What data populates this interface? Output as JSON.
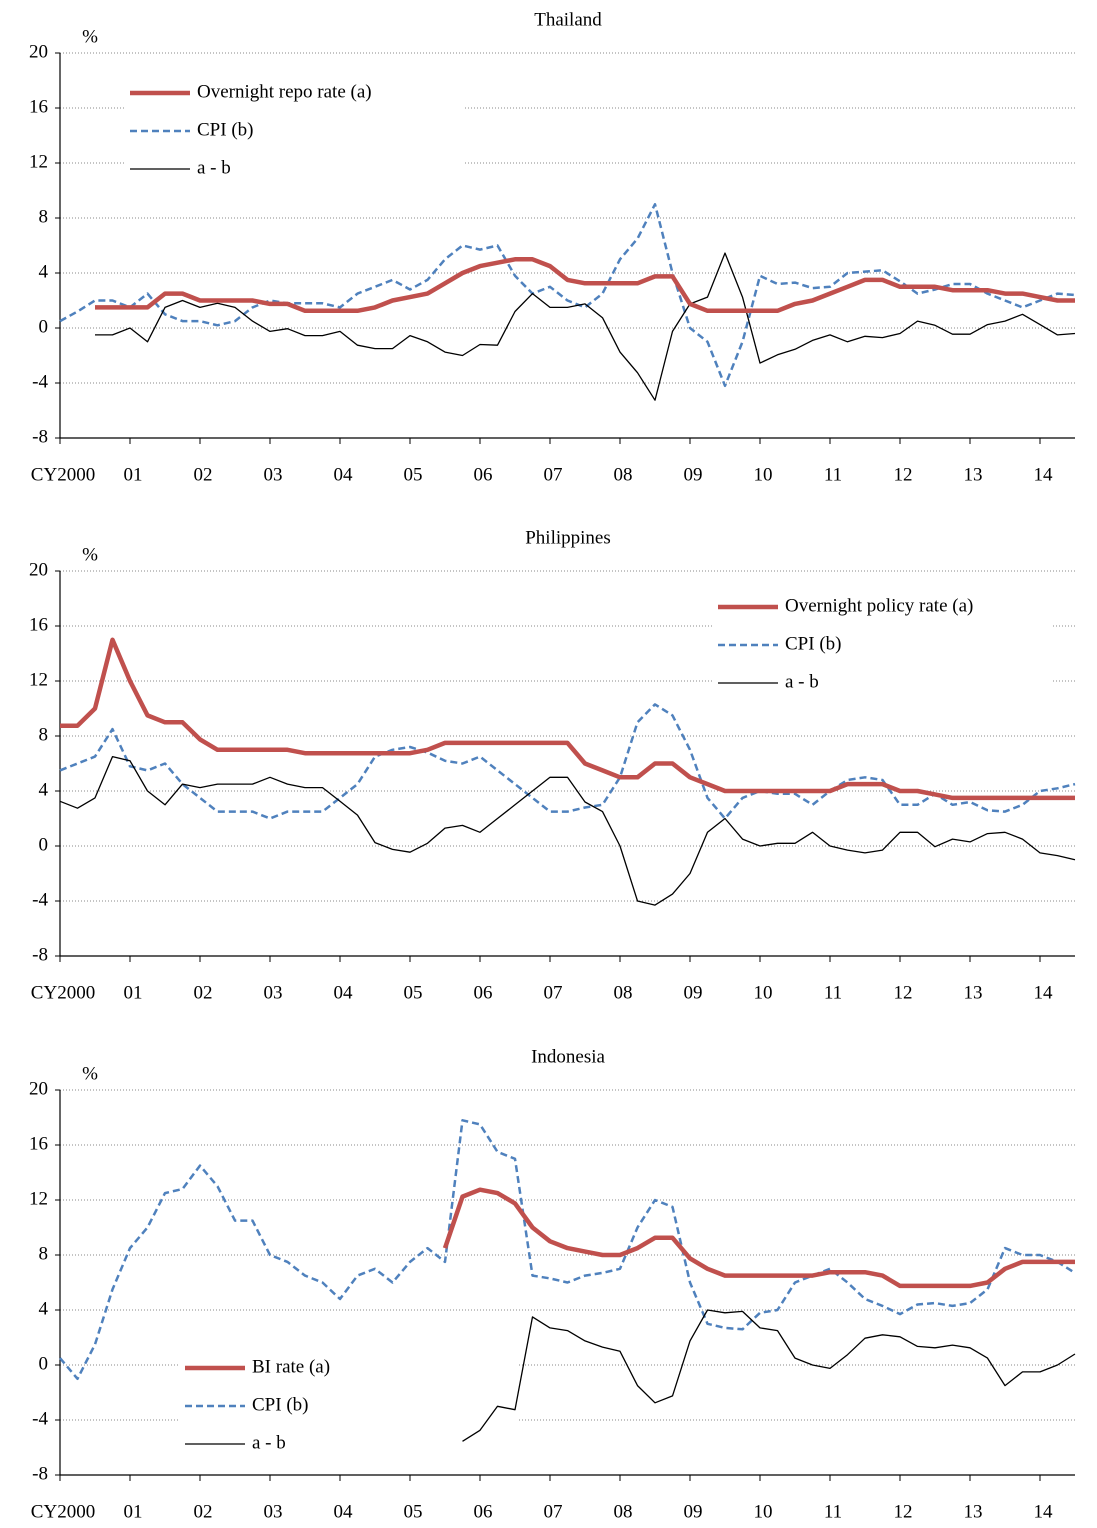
{
  "chart_data": [
    {
      "type": "line",
      "title": "Thailand",
      "y_label": "%",
      "legend": "upper left",
      "grid": true,
      "xlim": [
        2000,
        2014.5
      ],
      "ylim": [
        -8,
        20
      ],
      "yticks": [
        -8,
        -4,
        0,
        4,
        8,
        12,
        16,
        20
      ],
      "xticks": [
        {
          "value": 2000,
          "label": "CY2000"
        },
        {
          "value": 2001,
          "label": "01"
        },
        {
          "value": 2002,
          "label": "02"
        },
        {
          "value": 2003,
          "label": "03"
        },
        {
          "value": 2004,
          "label": "04"
        },
        {
          "value": 2005,
          "label": "05"
        },
        {
          "value": 2006,
          "label": "06"
        },
        {
          "value": 2007,
          "label": "07"
        },
        {
          "value": 2008,
          "label": "08"
        },
        {
          "value": 2009,
          "label": "09"
        },
        {
          "value": 2010,
          "label": "10"
        },
        {
          "value": 2011,
          "label": "11"
        },
        {
          "value": 2012,
          "label": "12"
        },
        {
          "value": 2013,
          "label": "13"
        },
        {
          "value": 2014,
          "label": "14"
        }
      ],
      "x": [
        2000,
        2000.25,
        2000.5,
        2000.75,
        2001,
        2001.25,
        2001.5,
        2001.75,
        2002,
        2002.25,
        2002.5,
        2002.75,
        2003,
        2003.25,
        2003.5,
        2003.75,
        2004,
        2004.25,
        2004.5,
        2004.75,
        2005,
        2005.25,
        2005.5,
        2005.75,
        2006,
        2006.25,
        2006.5,
        2006.75,
        2007,
        2007.25,
        2007.5,
        2007.75,
        2008,
        2008.25,
        2008.5,
        2008.75,
        2009,
        2009.25,
        2009.5,
        2009.75,
        2010,
        2010.25,
        2010.5,
        2010.75,
        2011,
        2011.25,
        2011.5,
        2011.75,
        2012,
        2012.25,
        2012.5,
        2012.75,
        2013,
        2013.25,
        2013.5,
        2013.75,
        2014,
        2014.25,
        2014.5
      ],
      "series": [
        {
          "name": "Overnight repo rate (a)",
          "color": "#c0504d",
          "style": "solid",
          "width": 4.5,
          "values": [
            null,
            null,
            1.5,
            1.5,
            1.5,
            1.5,
            2.5,
            2.5,
            2.0,
            2.0,
            2.0,
            2.0,
            1.75,
            1.75,
            1.25,
            1.25,
            1.25,
            1.25,
            1.5,
            2.0,
            2.25,
            2.5,
            3.25,
            4.0,
            4.5,
            4.75,
            5.0,
            5.0,
            4.5,
            3.5,
            3.25,
            3.25,
            3.25,
            3.25,
            3.75,
            3.75,
            1.75,
            1.25,
            1.25,
            1.25,
            1.25,
            1.25,
            1.75,
            2.0,
            2.5,
            3.0,
            3.5,
            3.5,
            3.0,
            3.0,
            3.0,
            2.75,
            2.75,
            2.75,
            2.5,
            2.5,
            2.25,
            2.0,
            2.0
          ]
        },
        {
          "name": "CPI (b)",
          "color": "#4f81bd",
          "style": "dashed",
          "width": 2.5,
          "values": [
            0.5,
            1.2,
            2.0,
            2.0,
            1.5,
            2.5,
            1.0,
            0.5,
            0.5,
            0.2,
            0.5,
            1.5,
            2.0,
            1.8,
            1.8,
            1.8,
            1.5,
            2.5,
            3.0,
            3.5,
            2.8,
            3.5,
            5.0,
            6.0,
            5.7,
            6.0,
            3.8,
            2.5,
            3.0,
            2.0,
            1.5,
            2.5,
            5.0,
            6.5,
            9.0,
            4.0,
            0.0,
            -1.0,
            -4.2,
            -1.0,
            3.8,
            3.2,
            3.3,
            2.9,
            3.0,
            4.0,
            4.1,
            4.2,
            3.4,
            2.5,
            2.8,
            3.2,
            3.2,
            2.5,
            2.0,
            1.5,
            2.0,
            2.5,
            2.4
          ]
        },
        {
          "name": "a - b",
          "color": "#000000",
          "style": "solid",
          "width": 1.3,
          "values": [
            null,
            null,
            -0.5,
            -0.5,
            0,
            -1,
            1.5,
            2,
            1.5,
            1.8,
            1.5,
            0.5,
            -0.25,
            -0.05,
            -0.55,
            -0.55,
            -0.25,
            -1.25,
            -1.5,
            -1.5,
            -0.55,
            -1,
            -1.75,
            -2,
            -1.2,
            -1.25,
            1.2,
            2.5,
            1.5,
            1.5,
            1.75,
            0.75,
            -1.75,
            -3.25,
            -5.25,
            -0.25,
            1.75,
            2.25,
            5.45,
            2.25,
            -2.55,
            -1.95,
            -1.55,
            -0.9,
            -0.5,
            -1,
            -0.6,
            -0.7,
            -0.4,
            0.5,
            0.2,
            -0.45,
            -0.45,
            0.25,
            0.5,
            1,
            0.25,
            -0.5,
            -0.4
          ]
        }
      ]
    },
    {
      "type": "line",
      "title": "Philippines",
      "y_label": "%",
      "legend": "upper right",
      "grid": true,
      "xlim": [
        2000,
        2014.5
      ],
      "ylim": [
        -8,
        20
      ],
      "yticks": [
        -8,
        -4,
        0,
        4,
        8,
        12,
        16,
        20
      ],
      "xticks": [
        {
          "value": 2000,
          "label": "CY2000"
        },
        {
          "value": 2001,
          "label": "01"
        },
        {
          "value": 2002,
          "label": "02"
        },
        {
          "value": 2003,
          "label": "03"
        },
        {
          "value": 2004,
          "label": "04"
        },
        {
          "value": 2005,
          "label": "05"
        },
        {
          "value": 2006,
          "label": "06"
        },
        {
          "value": 2007,
          "label": "07"
        },
        {
          "value": 2008,
          "label": "08"
        },
        {
          "value": 2009,
          "label": "09"
        },
        {
          "value": 2010,
          "label": "10"
        },
        {
          "value": 2011,
          "label": "11"
        },
        {
          "value": 2012,
          "label": "12"
        },
        {
          "value": 2013,
          "label": "13"
        },
        {
          "value": 2014,
          "label": "14"
        }
      ],
      "x": [
        2000,
        2000.25,
        2000.5,
        2000.75,
        2001,
        2001.25,
        2001.5,
        2001.75,
        2002,
        2002.25,
        2002.5,
        2002.75,
        2003,
        2003.25,
        2003.5,
        2003.75,
        2004,
        2004.25,
        2004.5,
        2004.75,
        2005,
        2005.25,
        2005.5,
        2005.75,
        2006,
        2006.25,
        2006.5,
        2006.75,
        2007,
        2007.25,
        2007.5,
        2007.75,
        2008,
        2008.25,
        2008.5,
        2008.75,
        2009,
        2009.25,
        2009.5,
        2009.75,
        2010,
        2010.25,
        2010.5,
        2010.75,
        2011,
        2011.25,
        2011.5,
        2011.75,
        2012,
        2012.25,
        2012.5,
        2012.75,
        2013,
        2013.25,
        2013.5,
        2013.75,
        2014,
        2014.25,
        2014.5
      ],
      "series": [
        {
          "name": "Overnight policy rate (a)",
          "color": "#c0504d",
          "style": "solid",
          "width": 4.5,
          "values": [
            8.75,
            8.75,
            10,
            15,
            12,
            9.5,
            9,
            9,
            7.75,
            7,
            7,
            7,
            7,
            7,
            6.75,
            6.75,
            6.75,
            6.75,
            6.75,
            6.75,
            6.75,
            7,
            7.5,
            7.5,
            7.5,
            7.5,
            7.5,
            7.5,
            7.5,
            7.5,
            6,
            5.5,
            5,
            5,
            6,
            6,
            5,
            4.5,
            4,
            4,
            4,
            4,
            4,
            4,
            4,
            4.5,
            4.5,
            4.5,
            4,
            4,
            3.75,
            3.5,
            3.5,
            3.5,
            3.5,
            3.5,
            3.5,
            3.5,
            3.5
          ]
        },
        {
          "name": "CPI (b)",
          "color": "#4f81bd",
          "style": "dashed",
          "width": 2.5,
          "values": [
            5.5,
            6.0,
            6.5,
            8.5,
            5.8,
            5.5,
            6.0,
            4.5,
            3.5,
            2.5,
            2.5,
            2.5,
            2.0,
            2.5,
            2.5,
            2.5,
            3.5,
            4.5,
            6.5,
            7.0,
            7.2,
            6.8,
            6.2,
            6.0,
            6.5,
            5.5,
            4.5,
            3.5,
            2.5,
            2.5,
            2.8,
            3.0,
            5.0,
            9.0,
            10.3,
            9.5,
            7.0,
            3.5,
            2.0,
            3.5,
            4.0,
            3.8,
            3.8,
            3.0,
            4.0,
            4.8,
            5.0,
            4.8,
            3.0,
            3.0,
            3.8,
            3.0,
            3.2,
            2.6,
            2.5,
            3.0,
            4.0,
            4.2,
            4.5
          ]
        },
        {
          "name": "a - b",
          "color": "#000000",
          "style": "solid",
          "width": 1.3,
          "values": [
            3.25,
            2.75,
            3.5,
            6.5,
            6.2,
            4.0,
            3.0,
            4.5,
            4.25,
            4.5,
            4.5,
            4.5,
            5.0,
            4.5,
            4.25,
            4.25,
            3.25,
            2.25,
            0.25,
            -0.25,
            -0.45,
            0.2,
            1.3,
            1.5,
            1.0,
            2.0,
            3.0,
            4.0,
            5.0,
            5.0,
            3.2,
            2.5,
            0.0,
            -4.0,
            -4.3,
            -3.5,
            -2.0,
            1.0,
            2.0,
            0.5,
            0.0,
            0.2,
            0.2,
            1.0,
            0.0,
            -0.3,
            -0.5,
            -0.3,
            1.0,
            1.0,
            -0.05,
            0.5,
            0.3,
            0.9,
            1.0,
            0.5,
            -0.5,
            -0.7,
            -1.0
          ]
        }
      ]
    },
    {
      "type": "line",
      "title": "Indonesia",
      "y_label": "%",
      "legend": "lower left",
      "grid": true,
      "xlim": [
        2000,
        2014.5
      ],
      "ylim": [
        -8,
        20
      ],
      "yticks": [
        -8,
        -4,
        0,
        4,
        8,
        12,
        16,
        20
      ],
      "xticks": [
        {
          "value": 2000,
          "label": "CY2000"
        },
        {
          "value": 2001,
          "label": "01"
        },
        {
          "value": 2002,
          "label": "02"
        },
        {
          "value": 2003,
          "label": "03"
        },
        {
          "value": 2004,
          "label": "04"
        },
        {
          "value": 2005,
          "label": "05"
        },
        {
          "value": 2006,
          "label": "06"
        },
        {
          "value": 2007,
          "label": "07"
        },
        {
          "value": 2008,
          "label": "08"
        },
        {
          "value": 2009,
          "label": "09"
        },
        {
          "value": 2010,
          "label": "10"
        },
        {
          "value": 2011,
          "label": "11"
        },
        {
          "value": 2012,
          "label": "12"
        },
        {
          "value": 2013,
          "label": "13"
        },
        {
          "value": 2014,
          "label": "14"
        }
      ],
      "x": [
        2000,
        2000.25,
        2000.5,
        2000.75,
        2001,
        2001.25,
        2001.5,
        2001.75,
        2002,
        2002.25,
        2002.5,
        2002.75,
        2003,
        2003.25,
        2003.5,
        2003.75,
        2004,
        2004.25,
        2004.5,
        2004.75,
        2005,
        2005.25,
        2005.5,
        2005.75,
        2006,
        2006.25,
        2006.5,
        2006.75,
        2007,
        2007.25,
        2007.5,
        2007.75,
        2008,
        2008.25,
        2008.5,
        2008.75,
        2009,
        2009.25,
        2009.5,
        2009.75,
        2010,
        2010.25,
        2010.5,
        2010.75,
        2011,
        2011.25,
        2011.5,
        2011.75,
        2012,
        2012.25,
        2012.5,
        2012.75,
        2013,
        2013.25,
        2013.5,
        2013.75,
        2014,
        2014.25,
        2014.5
      ],
      "series": [
        {
          "name": "BI rate (a)",
          "color": "#c0504d",
          "style": "solid",
          "width": 4.5,
          "values": [
            null,
            null,
            null,
            null,
            null,
            null,
            null,
            null,
            null,
            null,
            null,
            null,
            null,
            null,
            null,
            null,
            null,
            null,
            null,
            null,
            null,
            null,
            8.5,
            12.25,
            12.75,
            12.5,
            11.75,
            10.0,
            9.0,
            8.5,
            8.25,
            8.0,
            8.0,
            8.5,
            9.25,
            9.25,
            7.75,
            7.0,
            6.5,
            6.5,
            6.5,
            6.5,
            6.5,
            6.5,
            6.75,
            6.75,
            6.75,
            6.5,
            5.75,
            5.75,
            5.75,
            5.75,
            5.75,
            6.0,
            7.0,
            7.5,
            7.5,
            7.5,
            7.5
          ]
        },
        {
          "name": "CPI (b)",
          "color": "#4f81bd",
          "style": "dashed",
          "width": 2.5,
          "values": [
            0.5,
            -1.0,
            1.5,
            5.5,
            8.5,
            10,
            12.5,
            12.8,
            14.5,
            13,
            10.5,
            10.5,
            8,
            7.5,
            6.5,
            6.0,
            4.8,
            6.5,
            7.0,
            6.0,
            7.5,
            8.5,
            7.5,
            17.8,
            17.5,
            15.5,
            15.0,
            6.5,
            6.3,
            6.0,
            6.5,
            6.7,
            7.0,
            10.0,
            12.0,
            11.5,
            6.0,
            3.0,
            2.7,
            2.6,
            3.8,
            4.0,
            6.0,
            6.5,
            7.0,
            6.0,
            4.8,
            4.3,
            3.7,
            4.4,
            4.5,
            4.3,
            4.5,
            5.5,
            8.5,
            8.0,
            8.0,
            7.5,
            6.7
          ]
        },
        {
          "name": "a - b",
          "color": "#000000",
          "style": "solid",
          "width": 1.3,
          "values": [
            null,
            null,
            null,
            null,
            null,
            null,
            null,
            null,
            null,
            null,
            null,
            null,
            null,
            null,
            null,
            null,
            null,
            null,
            null,
            null,
            null,
            null,
            null,
            -5.55,
            -4.75,
            -3,
            -3.25,
            3.5,
            2.7,
            2.5,
            1.75,
            1.3,
            1,
            -1.5,
            -2.75,
            -2.25,
            1.75,
            4,
            3.8,
            3.9,
            2.7,
            2.5,
            0.5,
            0,
            -0.25,
            0.75,
            1.95,
            2.2,
            2.05,
            1.35,
            1.25,
            1.45,
            1.25,
            0.5,
            -1.5,
            -0.5,
            -0.5,
            0,
            0.8
          ]
        }
      ]
    }
  ]
}
